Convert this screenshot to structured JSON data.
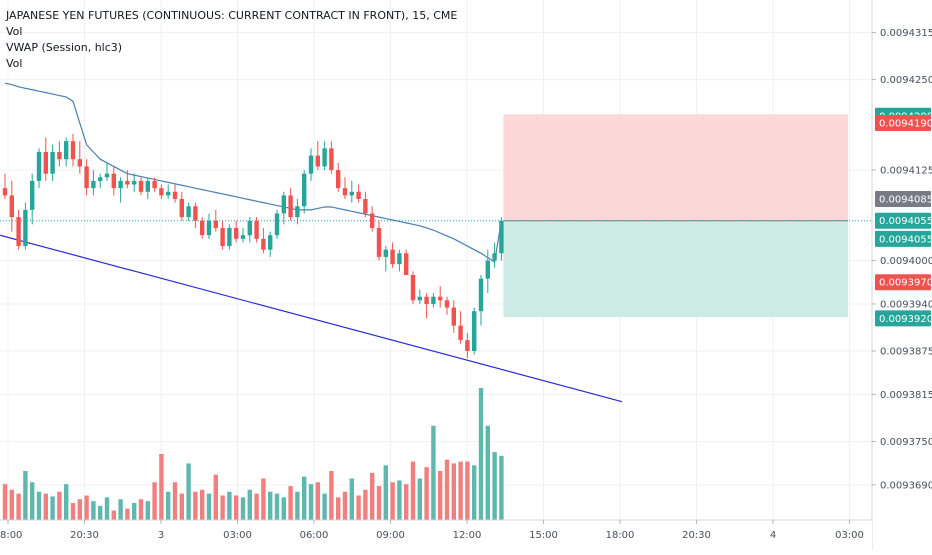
{
  "legend": {
    "title": "JAPANESE YEN FUTURES (CONTINUOUS: CURRENT CONTRACT IN FRONT), 15, CME",
    "line2": "Vol",
    "line3": "VWAP (Session, hlc3)",
    "line4": "Vol"
  },
  "colors": {
    "up": "#26a69a",
    "down": "#ef5350",
    "vol_up": "#5fb8ae",
    "vol_down": "#f08080",
    "vwap": "#4a7fb0",
    "trendline": "#2b2bd6",
    "risk_zone": "#fcd7d7",
    "reward_zone": "#cdeae5",
    "grid": "#eef0f3"
  },
  "chart_data": {
    "type": "candlestick",
    "symbol": "JAPANESE YEN FUTURES (CONTINUOUS: CURRENT CONTRACT IN FRONT)",
    "interval": "15",
    "exchange": "CME",
    "x_ticks": [
      "18:00",
      "20:30",
      "3",
      "03:00",
      "06:00",
      "09:00",
      "12:00",
      "15:00",
      "18:00",
      "20:30",
      "4",
      "03:00"
    ],
    "y_ticks": [
      "0.0094315",
      "0.0094250",
      "0.0094125",
      "0.0094000",
      "0.0093940",
      "0.0093875",
      "0.0093815",
      "0.0093750",
      "0.0093690"
    ],
    "ylim": [
      0.00936,
      0.009436
    ],
    "price_tags": [
      {
        "label": "0.0094200",
        "value": 0.00942,
        "color": "#26a69a"
      },
      {
        "label": "0.0094190",
        "value": 0.009419,
        "color": "#ef5350"
      },
      {
        "label": "0.0094085",
        "value": 0.0094085,
        "color": "#787b86"
      },
      {
        "label": "0.0094055",
        "value": 0.0094055,
        "color": "#26a69a"
      },
      {
        "label": "0.0094055",
        "value": 0.009403,
        "color": "#26a69a"
      },
      {
        "label": "0.0093970",
        "value": 0.009397,
        "color": "#ef5350"
      },
      {
        "label": "0.0093920",
        "value": 0.009392,
        "color": "#26a69a"
      }
    ],
    "candles": [
      [
        0.00941,
        0.009412,
        0.0094085,
        0.009409
      ],
      [
        0.009409,
        0.009411,
        0.009404,
        0.009406
      ],
      [
        0.009406,
        0.009407,
        0.0094015,
        0.009402
      ],
      [
        0.009402,
        0.009408,
        0.0094015,
        0.009407
      ],
      [
        0.009407,
        0.009412,
        0.009405,
        0.009411
      ],
      [
        0.009411,
        0.0094155,
        0.00941,
        0.009415
      ],
      [
        0.009415,
        0.009417,
        0.009411,
        0.009412
      ],
      [
        0.009412,
        0.009416,
        0.009411,
        0.009415
      ],
      [
        0.009415,
        0.0094165,
        0.009413,
        0.009414
      ],
      [
        0.009414,
        0.009417,
        0.009413,
        0.0094165
      ],
      [
        0.0094165,
        0.0094175,
        0.009413,
        0.009414
      ],
      [
        0.009414,
        0.0094165,
        0.009412,
        0.009413
      ],
      [
        0.009413,
        0.009414,
        0.009409,
        0.00941
      ],
      [
        0.00941,
        0.0094125,
        0.009409,
        0.009411
      ],
      [
        0.009411,
        0.009412,
        0.00941,
        0.0094115
      ],
      [
        0.0094115,
        0.0094135,
        0.009411,
        0.009412
      ],
      [
        0.009412,
        0.009413,
        0.009409,
        0.00941
      ],
      [
        0.00941,
        0.0094115,
        0.009408,
        0.009411
      ],
      [
        0.009411,
        0.0094125,
        0.00941,
        0.0094105
      ],
      [
        0.0094105,
        0.009412,
        0.0094095,
        0.009411
      ],
      [
        0.009411,
        0.0094115,
        0.009409,
        0.0094095
      ],
      [
        0.0094095,
        0.0094115,
        0.0094085,
        0.009411
      ],
      [
        0.009411,
        0.0094115,
        0.0094095,
        0.00941
      ],
      [
        0.00941,
        0.0094105,
        0.0094085,
        0.009409
      ],
      [
        0.009409,
        0.0094105,
        0.0094085,
        0.0094095
      ],
      [
        0.0094095,
        0.0094105,
        0.009408,
        0.0094085
      ],
      [
        0.0094085,
        0.0094095,
        0.0094055,
        0.009406
      ],
      [
        0.009406,
        0.009408,
        0.0094055,
        0.0094075
      ],
      [
        0.0094075,
        0.009408,
        0.0094045,
        0.0094055
      ],
      [
        0.0094055,
        0.009406,
        0.009403,
        0.0094035
      ],
      [
        0.0094035,
        0.0094065,
        0.009403,
        0.0094055
      ],
      [
        0.0094055,
        0.009407,
        0.009404,
        0.0094045
      ],
      [
        0.0094045,
        0.0094055,
        0.0094015,
        0.009402
      ],
      [
        0.009402,
        0.009405,
        0.0094015,
        0.0094045
      ],
      [
        0.0094045,
        0.0094055,
        0.0094025,
        0.009403
      ],
      [
        0.009403,
        0.0094045,
        0.0094025,
        0.0094035
      ],
      [
        0.0094035,
        0.009406,
        0.0094025,
        0.0094055
      ],
      [
        0.0094055,
        0.009406,
        0.0094025,
        0.009403
      ],
      [
        0.009403,
        0.0094045,
        0.009401,
        0.0094015
      ],
      [
        0.0094015,
        0.009404,
        0.0094005,
        0.0094035
      ],
      [
        0.0094035,
        0.009407,
        0.009403,
        0.0094065
      ],
      [
        0.0094065,
        0.0094095,
        0.009405,
        0.009409
      ],
      [
        0.009409,
        0.00941,
        0.0094055,
        0.009406
      ],
      [
        0.009406,
        0.0094085,
        0.009405,
        0.0094075
      ],
      [
        0.0094075,
        0.0094125,
        0.0094065,
        0.009412
      ],
      [
        0.009412,
        0.0094155,
        0.009411,
        0.0094145
      ],
      [
        0.0094145,
        0.0094165,
        0.0094125,
        0.009413
      ],
      [
        0.009413,
        0.0094165,
        0.0094125,
        0.0094155
      ],
      [
        0.0094155,
        0.0094165,
        0.009412,
        0.0094125
      ],
      [
        0.0094125,
        0.0094135,
        0.0094095,
        0.00941
      ],
      [
        0.00941,
        0.0094115,
        0.0094085,
        0.009409
      ],
      [
        0.009409,
        0.009411,
        0.009408,
        0.0094095
      ],
      [
        0.0094095,
        0.0094105,
        0.009408,
        0.0094085
      ],
      [
        0.0094085,
        0.0094095,
        0.009406,
        0.0094065
      ],
      [
        0.0094065,
        0.0094075,
        0.009404,
        0.0094045
      ],
      [
        0.0094045,
        0.0094055,
        0.0094,
        0.0094005
      ],
      [
        0.0094005,
        0.009402,
        0.0093985,
        0.0094015
      ],
      [
        0.0094015,
        0.0094025,
        0.009399,
        0.0093995
      ],
      [
        0.0093995,
        0.0094015,
        0.0093985,
        0.009401
      ],
      [
        0.009401,
        0.0094015,
        0.009398,
        0.009398
      ],
      [
        0.009398,
        0.0093985,
        0.009394,
        0.0093945
      ],
      [
        0.0093945,
        0.009396,
        0.009394,
        0.009395
      ],
      [
        0.009395,
        0.0093955,
        0.009392,
        0.009394
      ],
      [
        0.009394,
        0.0093955,
        0.0093935,
        0.009395
      ],
      [
        0.009395,
        0.0093965,
        0.0093935,
        0.0093945
      ],
      [
        0.0093945,
        0.009395,
        0.0093925,
        0.0093935
      ],
      [
        0.0093935,
        0.0093945,
        0.00939,
        0.009391
      ],
      [
        0.009391,
        0.009393,
        0.0093885,
        0.009389
      ],
      [
        0.009389,
        0.00939,
        0.0093865,
        0.0093875
      ],
      [
        0.0093875,
        0.0093935,
        0.009387,
        0.009393
      ],
      [
        0.009393,
        0.009398,
        0.009391,
        0.0093975
      ],
      [
        0.0093975,
        0.0094015,
        0.0093955,
        0.0094
      ],
      [
        0.0094,
        0.0094025,
        0.009399,
        0.009401
      ],
      [
        0.009401,
        0.009406,
        0.0094,
        0.0094055
      ]
    ],
    "volumes": [
      38,
      32,
      28,
      52,
      40,
      30,
      28,
      25,
      30,
      38,
      18,
      22,
      26,
      20,
      15,
      24,
      10,
      22,
      12,
      18,
      22,
      20,
      40,
      70,
      30,
      40,
      28,
      60,
      30,
      32,
      28,
      48,
      26,
      30,
      26,
      24,
      32,
      28,
      44,
      30,
      28,
      24,
      36,
      30,
      46,
      38,
      40,
      28,
      52,
      24,
      30,
      44,
      26,
      32,
      50,
      36,
      58,
      40,
      42,
      38,
      62,
      44,
      56,
      100,
      52,
      64,
      60,
      62,
      62,
      58,
      140,
      100,
      72,
      68
    ],
    "vwap": [
      0.0094245,
      0.0094243,
      0.009424,
      0.0094238,
      0.0094236,
      0.0094234,
      0.0094232,
      0.009423,
      0.0094228,
      0.0094226,
      0.009422,
      0.009419,
      0.009416,
      0.009415,
      0.009414,
      0.0094135,
      0.009413,
      0.0094125,
      0.009412,
      0.0094118,
      0.0094116,
      0.0094114,
      0.0094112,
      0.009411,
      0.0094108,
      0.0094106,
      0.0094104,
      0.0094102,
      0.00941,
      0.0094098,
      0.0094096,
      0.0094094,
      0.0094092,
      0.009409,
      0.0094088,
      0.0094086,
      0.0094084,
      0.0094082,
      0.009408,
      0.0094078,
      0.0094076,
      0.0094074,
      0.0094072,
      0.009407,
      0.009407,
      0.009407,
      0.0094072,
      0.0094074,
      0.0094074,
      0.0094072,
      0.009407,
      0.0094068,
      0.0094066,
      0.0094064,
      0.0094062,
      0.009406,
      0.0094058,
      0.0094056,
      0.0094054,
      0.0094052,
      0.009405,
      0.0094048,
      0.0094045,
      0.0094042,
      0.0094038,
      0.0094034,
      0.009403,
      0.0094025,
      0.009402,
      0.0094015,
      0.009401,
      0.0094004,
      0.0093998,
      0.0094055
    ],
    "position": {
      "entry": 0.0094055,
      "stop": 0.0094202,
      "target": 0.0093922
    },
    "trendline": {
      "from_price": 0.0094035,
      "to_price": 0.0093805
    }
  }
}
